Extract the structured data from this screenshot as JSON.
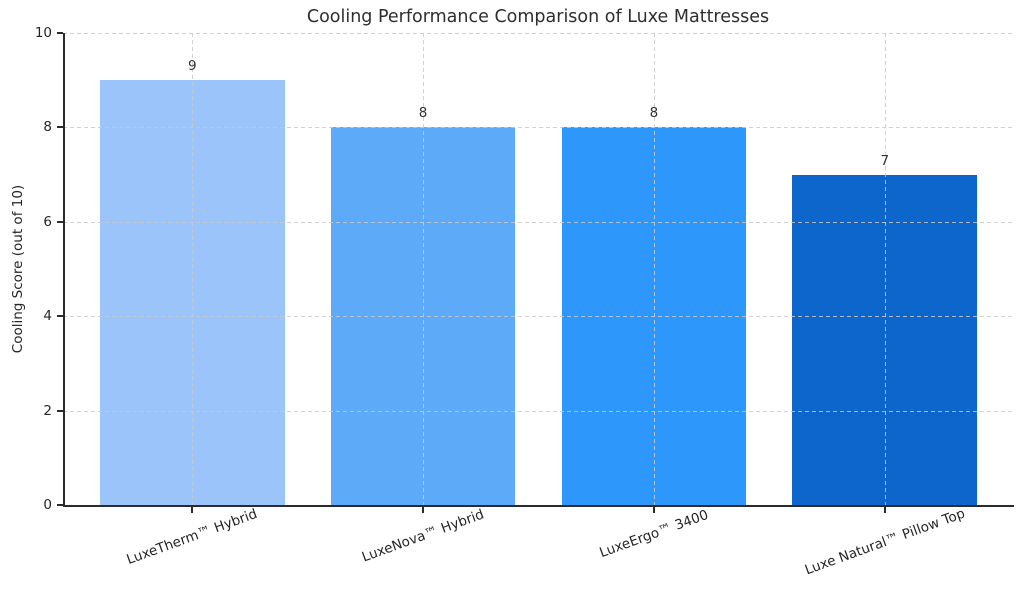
{
  "figure": {
    "background": "#ffffff",
    "text_color": "#262626",
    "spine_color": "#2b2b2b",
    "grid_color": "#c9c9c9"
  },
  "chart_data": {
    "type": "bar",
    "title": "Cooling Performance Comparison of Luxe Mattresses",
    "xlabel": "",
    "ylabel": "Cooling Score (out of 10)",
    "categories": [
      "LuxeTherm™ Hybrid",
      "LuxeNova™ Hybrid",
      "LuxeErgo™ 3400",
      "Luxe Natural™ Pillow Top"
    ],
    "values": [
      9,
      8,
      8,
      7
    ],
    "value_labels": [
      "9",
      "8",
      "8",
      "7"
    ],
    "bar_colors": [
      "#9ac4fa",
      "#5caaf8",
      "#2e97fb",
      "#0d66cc"
    ],
    "yticks": [
      0,
      2,
      4,
      6,
      8,
      10
    ],
    "ytick_labels": [
      "0",
      "2",
      "4",
      "6",
      "8",
      "10"
    ],
    "ylim": [
      0,
      10
    ],
    "grid": "dashed",
    "grid_on": true,
    "legend": "none",
    "x_tick_rotation_deg": 20
  }
}
